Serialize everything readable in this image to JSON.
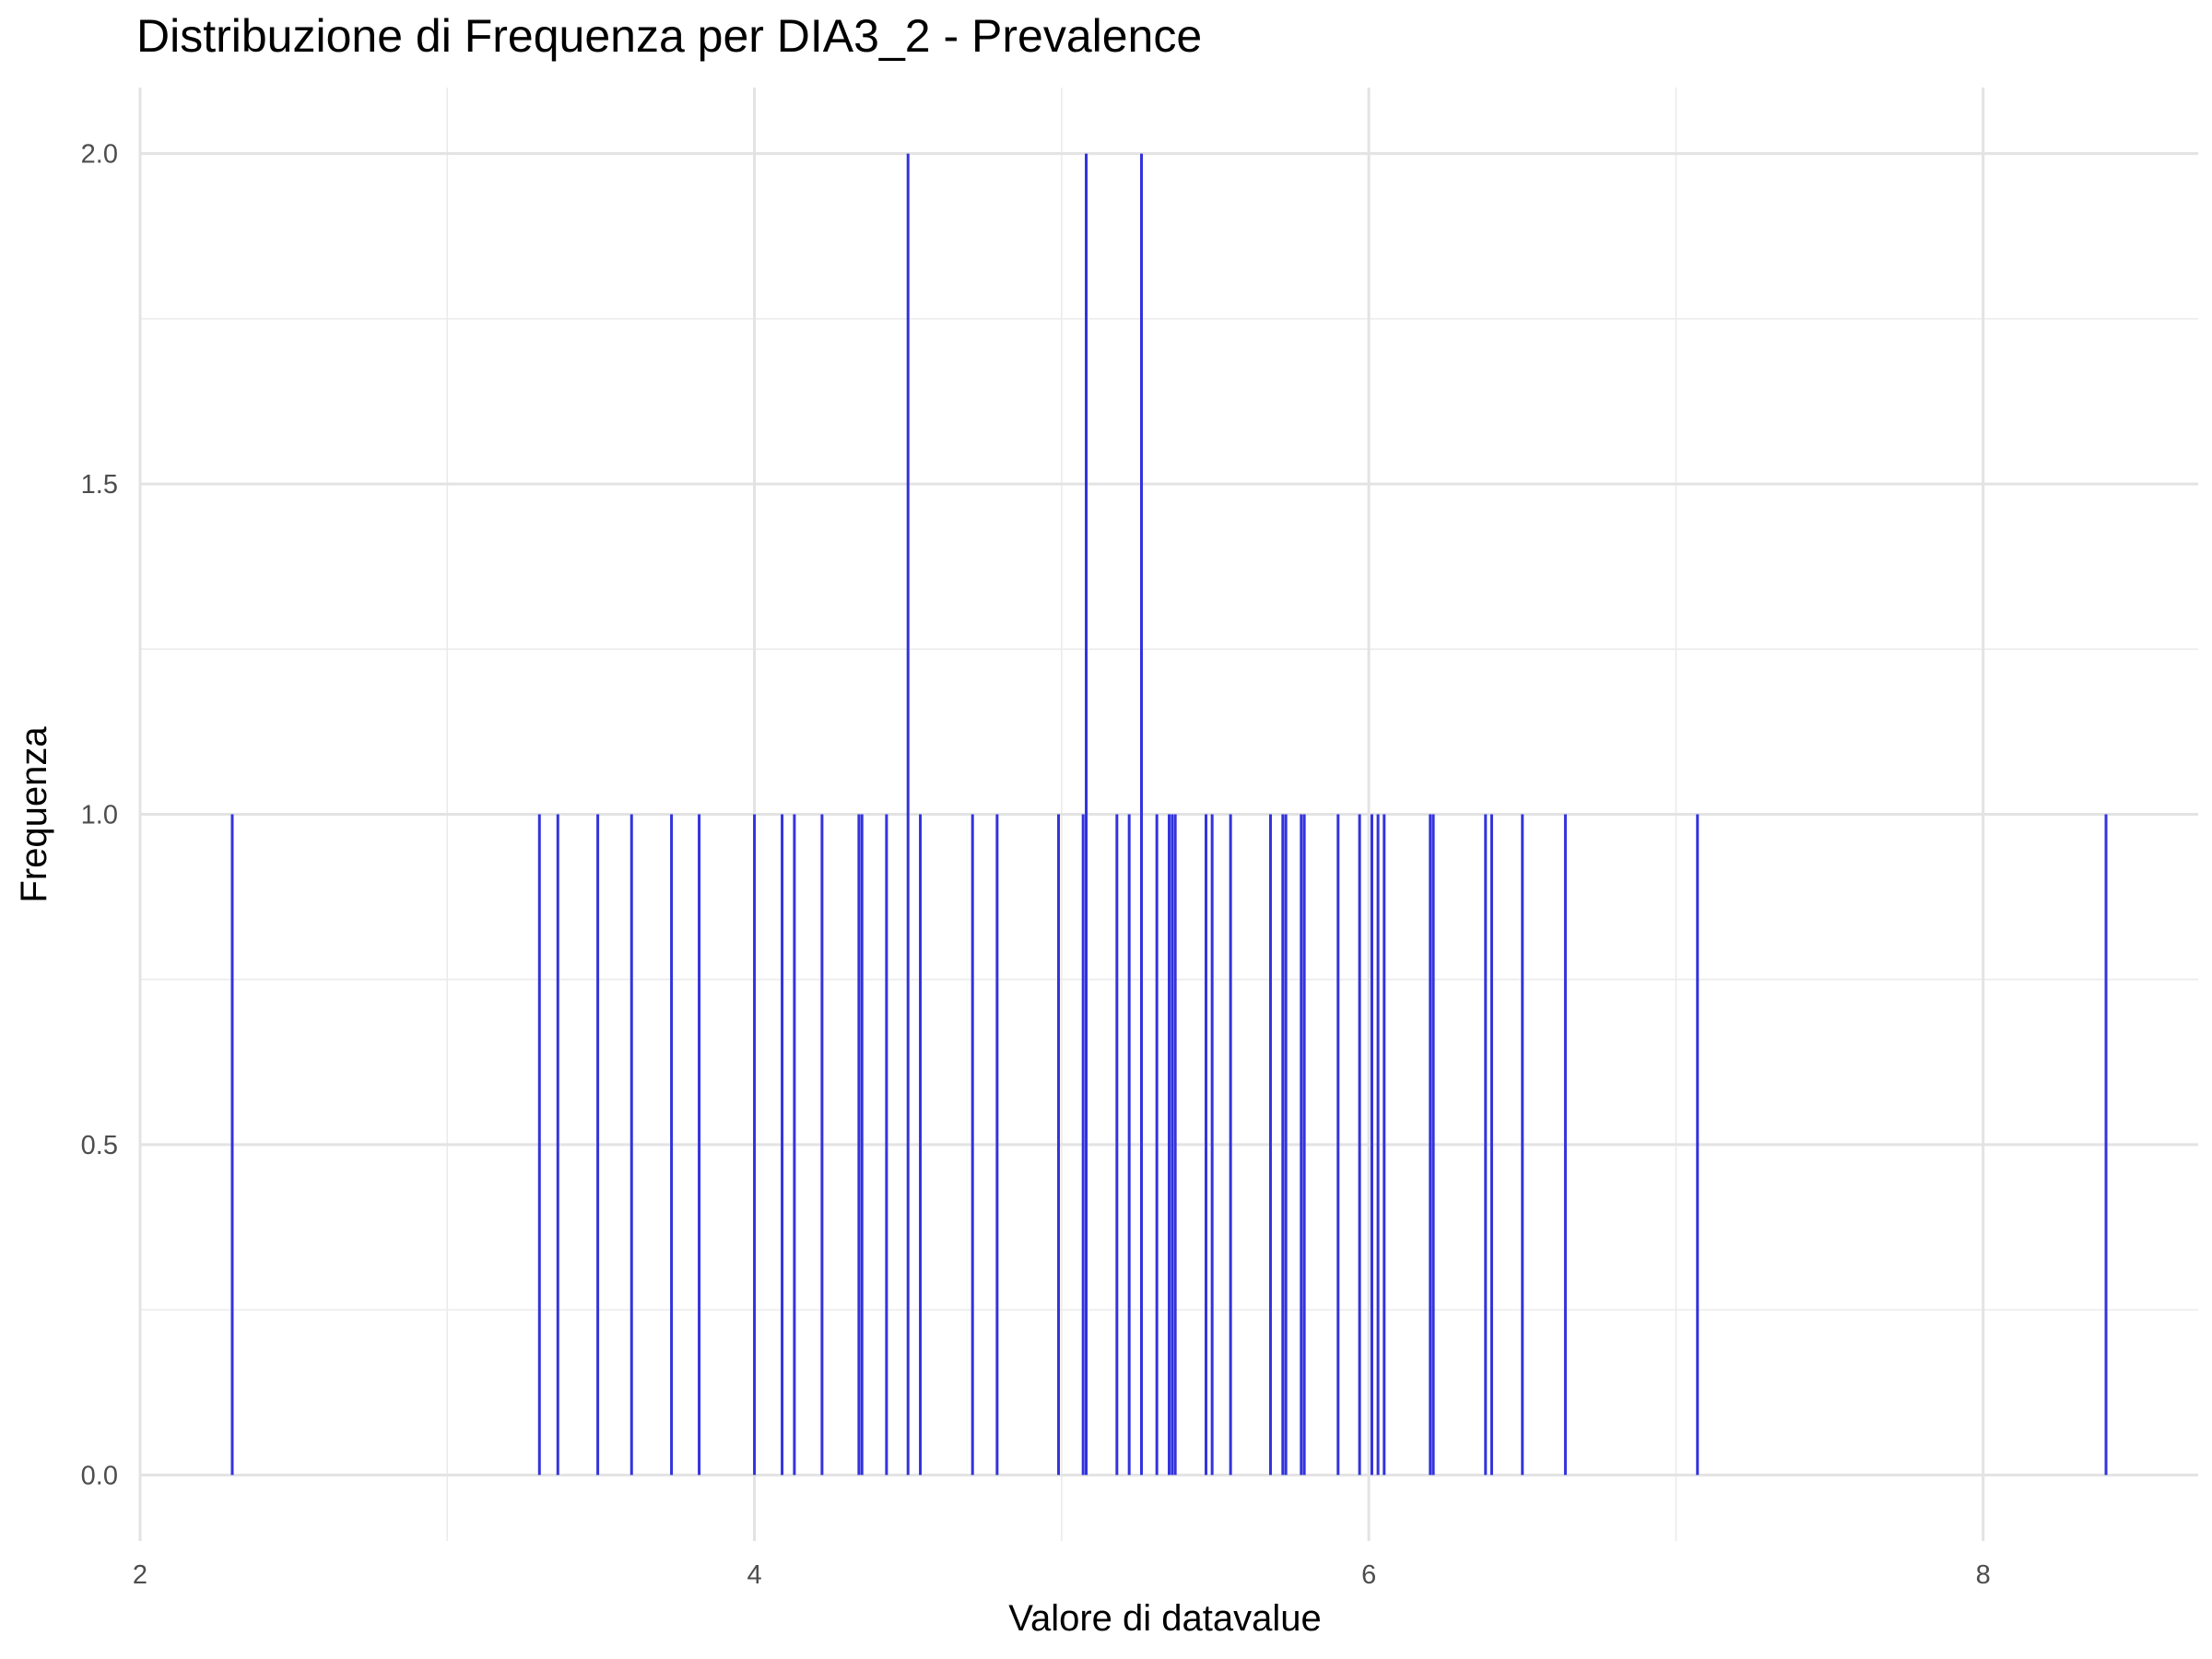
{
  "chart_data": {
    "type": "bar",
    "title": "Distribuzione di Frequenza per DIA3_2 - Prevalence",
    "xlabel": "Valore di datavalue",
    "ylabel": "Frequenza",
    "xlim": [
      2,
      8.7
    ],
    "ylim": [
      -0.1,
      2.1
    ],
    "x_ticks": [
      2,
      4,
      6,
      8
    ],
    "y_ticks": [
      0.0,
      0.5,
      1.0,
      1.5,
      2.0
    ],
    "x_tick_labels": [
      "2",
      "4",
      "6",
      "8"
    ],
    "y_tick_labels": [
      "0.0",
      "0.5",
      "1.0",
      "1.5",
      "2.0"
    ],
    "grid": true,
    "bar_color": "#3333dd",
    "x": [
      2.3,
      3.3,
      3.36,
      3.49,
      3.6,
      3.73,
      3.82,
      4.0,
      4.09,
      4.13,
      4.22,
      4.34,
      4.35,
      4.43,
      4.5,
      4.54,
      4.71,
      4.79,
      4.99,
      5.07,
      5.08,
      5.18,
      5.22,
      5.26,
      5.31,
      5.35,
      5.36,
      5.37,
      5.47,
      5.49,
      5.55,
      5.68,
      5.72,
      5.73,
      5.78,
      5.79,
      5.9,
      5.97,
      6.01,
      6.03,
      6.05,
      6.2,
      6.21,
      6.38,
      6.4,
      6.5,
      6.64,
      7.07,
      8.4
    ],
    "values": [
      1,
      1,
      1,
      1,
      1,
      1,
      1,
      1,
      1,
      1,
      1,
      1,
      1,
      1,
      2,
      1,
      1,
      1,
      1,
      1,
      2,
      1,
      1,
      2,
      1,
      1,
      1,
      1,
      1,
      1,
      1,
      1,
      1,
      1,
      1,
      1,
      1,
      1,
      1,
      1,
      1,
      1,
      1,
      1,
      1,
      1,
      1,
      1,
      1
    ]
  }
}
